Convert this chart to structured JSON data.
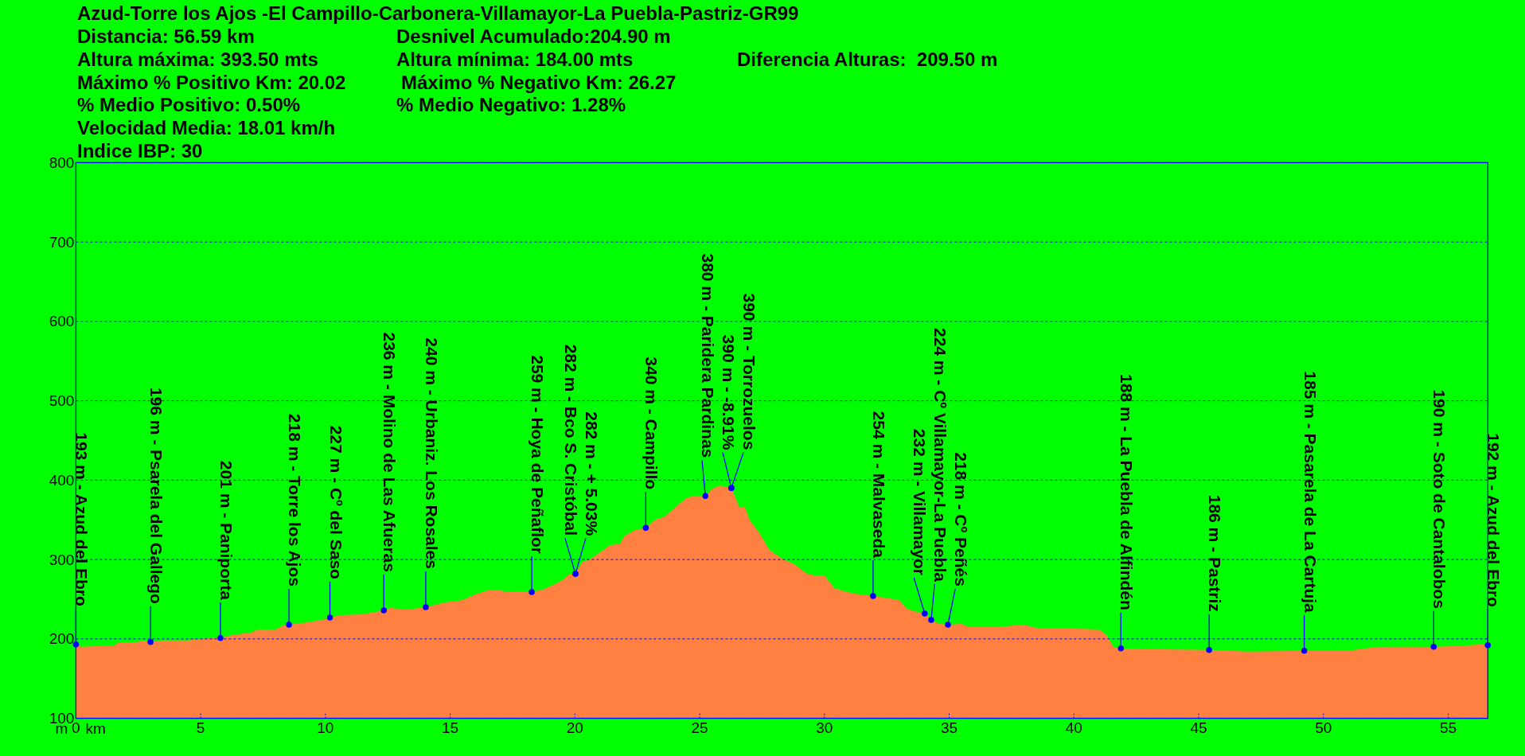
{
  "chart_data": {
    "type": "area",
    "title": "Azud-Torre los Ajos -El Campillo-Carbonera-Villamayor-La Puebla-Pastriz-GR99",
    "annotations": [
      "Distancia: 56.59 km",
      "Desnivel Acumulado:204.90 m",
      "Altura máxima: 393.50 mts",
      "Altura mínima: 184.00 mts",
      "Diferencia Alturas:  209.50 m",
      "Máximo % Positivo Km: 20.02",
      "Máximo % Negativo Km: 26.27",
      "% Medio Positivo: 0.50%",
      "% Medio Negativo: 1.28%",
      "Velocidad Media: 18.01 km/h",
      "Indice IBP: 30"
    ],
    "xlabel": "km",
    "ylabel": "m",
    "xlim": [
      0,
      56.59
    ],
    "xticks": [
      0,
      5,
      10,
      15,
      20,
      25,
      30,
      35,
      40,
      45,
      50,
      55
    ],
    "ylim": [
      100,
      800
    ],
    "yticks": [
      100,
      200,
      300,
      400,
      500,
      600,
      700,
      800
    ],
    "grid": "y",
    "series": [
      {
        "color": "#ff8040",
        "x": [
          0,
          0.2,
          1.0,
          1.5,
          1.7,
          2.5,
          2.6,
          2.99,
          3.5,
          4.5,
          5.0,
          5.5,
          5.79,
          6.3,
          7.0,
          7.3,
          8.0,
          8.3,
          8.54,
          9.3,
          10.0,
          10.18,
          10.6,
          11.5,
          12.0,
          12.34,
          12.6,
          13.3,
          14.02,
          14.8,
          15.5,
          16.0,
          16.6,
          17.0,
          17.3,
          18.0,
          18.27,
          18.7,
          19.2,
          19.5,
          19.8,
          20.02,
          20.3,
          20.6,
          21.0,
          21.4,
          21.8,
          22.0,
          22.4,
          22.84,
          23.2,
          23.6,
          24.1,
          24.5,
          24.8,
          25.23,
          25.5,
          25.8,
          26.0,
          26.27,
          26.4,
          26.6,
          26.8,
          27.0,
          27.4,
          27.8,
          28.3,
          28.8,
          29.3,
          29.6,
          30.0,
          30.4,
          30.8,
          31.2,
          31.95,
          32.4,
          33.0,
          33.3,
          33.8,
          34.02,
          34.28,
          34.6,
          34.95,
          35.5,
          35.8,
          36.9,
          38.0,
          38.5,
          39.3,
          40.0,
          41.0,
          41.3,
          41.6,
          41.88,
          43.0,
          45.42,
          47.0,
          49.23,
          51.0,
          52.2,
          53.0,
          54.42,
          55.5,
          56.3,
          56.59
        ],
        "values": [
          193,
          190,
          191,
          191,
          195,
          196,
          198,
          196,
          198,
          198,
          200,
          201,
          201,
          205,
          208,
          212,
          212,
          217,
          218,
          221,
          225,
          227,
          230,
          231,
          234,
          236,
          239,
          237,
          240,
          246,
          249,
          256,
          262,
          261,
          259,
          260,
          259,
          262,
          269,
          274,
          282,
          282,
          297,
          300,
          309,
          318,
          320,
          330,
          337,
          340,
          350,
          354,
          368,
          378,
          380,
          380,
          389,
          393,
          392,
          390,
          380,
          365,
          367,
          350,
          333,
          312,
          301,
          294,
          282,
          280,
          280,
          264,
          260,
          257,
          254,
          252,
          249,
          238,
          233,
          232,
          224,
          219,
          218,
          219,
          215,
          215,
          218,
          214,
          213,
          213,
          212,
          205,
          189,
          188,
          187,
          186,
          184,
          185,
          185,
          190,
          190,
          190,
          191,
          193,
          192
        ]
      },
      {
        "type": "scatter",
        "color": "#0000ff",
        "marker": "circle",
        "x": [
          0,
          2.99,
          5.79,
          8.54,
          10.18,
          12.34,
          14.02,
          18.27,
          20.02,
          20.02,
          22.84,
          25.23,
          26.27,
          26.27,
          31.95,
          34.02,
          34.28,
          34.95,
          41.88,
          45.42,
          49.23,
          54.42,
          56.59
        ],
        "values": [
          193,
          196,
          201,
          218,
          227,
          236,
          240,
          259,
          282,
          282,
          340,
          380,
          390,
          390,
          254,
          232,
          224,
          218,
          188,
          186,
          185,
          190,
          192
        ],
        "value_labels": [
          "193 m - Azud del Ebro",
          "196 m - Psarela del Gallego",
          "201 m - Paniporta",
          "218 m - Torre los Ajos",
          "227 m - Cº del Saso",
          "236 m - Molino de Las Afueras",
          "240 m - Urbaniz. Los Rosales",
          "259 m - Hoya de Peñaflor",
          "282 m - Bco S. Cristóbal",
          "282 m - + 5.03%",
          "340 m - Campillo",
          "380 m - Paridera Pardinas",
          "390 m - -8.91%",
          "390 m - Torrozuelos",
          "254 m - Malvaseda",
          "232 m - Villamayor",
          "224 m - Cº Villamayor-La Puebla",
          "218 m - Cº Peñés",
          "188 m - La Puebla de Alfindén",
          "186 m - Pastriz",
          "185 m - Pasarela de La Cartuja",
          "190 m - Soto de Cantalobos",
          "192 m - Azud del Ebro"
        ]
      }
    ]
  }
}
